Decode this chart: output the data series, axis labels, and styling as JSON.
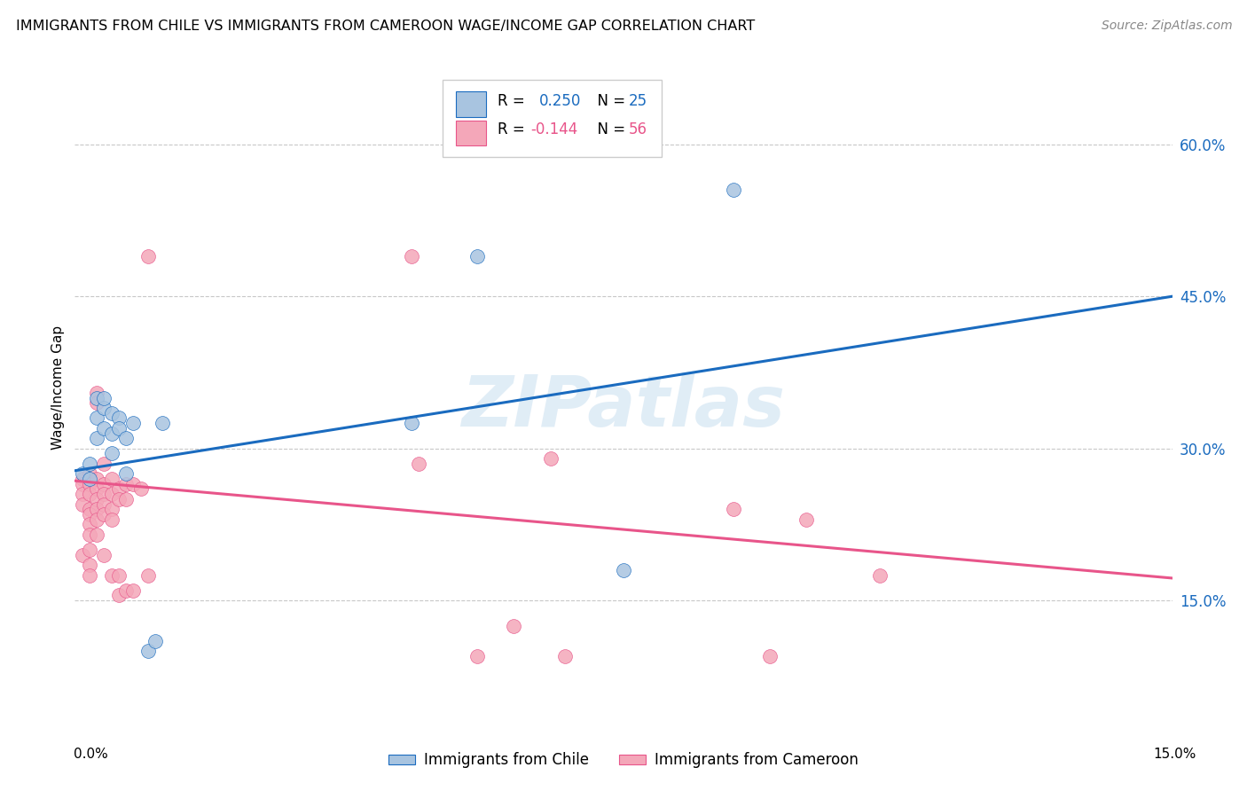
{
  "title": "IMMIGRANTS FROM CHILE VS IMMIGRANTS FROM CAMEROON WAGE/INCOME GAP CORRELATION CHART",
  "source": "Source: ZipAtlas.com",
  "ylabel": "Wage/Income Gap",
  "yaxis_labels": [
    "60.0%",
    "45.0%",
    "30.0%",
    "15.0%"
  ],
  "yaxis_values": [
    0.6,
    0.45,
    0.3,
    0.15
  ],
  "xlim": [
    0.0,
    0.15
  ],
  "ylim": [
    0.04,
    0.68
  ],
  "watermark": "ZIPatlas",
  "legend_chile_color": "#a8c4e0",
  "legend_cameroon_color": "#f4a7b9",
  "chile_line_color": "#1a6bbf",
  "cameroon_line_color": "#e8558a",
  "bottom_legend_chile": "Immigrants from Chile",
  "bottom_legend_cameroon": "Immigrants from Cameroon",
  "chile_scatter": [
    [
      0.001,
      0.275
    ],
    [
      0.002,
      0.27
    ],
    [
      0.002,
      0.285
    ],
    [
      0.003,
      0.31
    ],
    [
      0.003,
      0.33
    ],
    [
      0.003,
      0.35
    ],
    [
      0.004,
      0.34
    ],
    [
      0.004,
      0.35
    ],
    [
      0.004,
      0.32
    ],
    [
      0.005,
      0.315
    ],
    [
      0.005,
      0.335
    ],
    [
      0.005,
      0.295
    ],
    [
      0.006,
      0.33
    ],
    [
      0.006,
      0.32
    ],
    [
      0.007,
      0.31
    ],
    [
      0.007,
      0.275
    ],
    [
      0.008,
      0.325
    ],
    [
      0.01,
      0.1
    ],
    [
      0.011,
      0.11
    ],
    [
      0.012,
      0.325
    ],
    [
      0.046,
      0.325
    ],
    [
      0.055,
      0.49
    ],
    [
      0.075,
      0.18
    ],
    [
      0.09,
      0.555
    ]
  ],
  "cameroon_scatter": [
    [
      0.001,
      0.27
    ],
    [
      0.001,
      0.265
    ],
    [
      0.001,
      0.255
    ],
    [
      0.001,
      0.245
    ],
    [
      0.001,
      0.195
    ],
    [
      0.002,
      0.275
    ],
    [
      0.002,
      0.265
    ],
    [
      0.002,
      0.255
    ],
    [
      0.002,
      0.24
    ],
    [
      0.002,
      0.235
    ],
    [
      0.002,
      0.225
    ],
    [
      0.002,
      0.215
    ],
    [
      0.002,
      0.2
    ],
    [
      0.002,
      0.185
    ],
    [
      0.002,
      0.175
    ],
    [
      0.003,
      0.355
    ],
    [
      0.003,
      0.345
    ],
    [
      0.003,
      0.27
    ],
    [
      0.003,
      0.26
    ],
    [
      0.003,
      0.25
    ],
    [
      0.003,
      0.24
    ],
    [
      0.003,
      0.23
    ],
    [
      0.003,
      0.215
    ],
    [
      0.004,
      0.285
    ],
    [
      0.004,
      0.265
    ],
    [
      0.004,
      0.255
    ],
    [
      0.004,
      0.245
    ],
    [
      0.004,
      0.235
    ],
    [
      0.004,
      0.195
    ],
    [
      0.005,
      0.27
    ],
    [
      0.005,
      0.255
    ],
    [
      0.005,
      0.24
    ],
    [
      0.005,
      0.23
    ],
    [
      0.005,
      0.175
    ],
    [
      0.006,
      0.26
    ],
    [
      0.006,
      0.25
    ],
    [
      0.006,
      0.175
    ],
    [
      0.006,
      0.155
    ],
    [
      0.007,
      0.265
    ],
    [
      0.007,
      0.25
    ],
    [
      0.007,
      0.16
    ],
    [
      0.008,
      0.265
    ],
    [
      0.008,
      0.16
    ],
    [
      0.009,
      0.26
    ],
    [
      0.01,
      0.49
    ],
    [
      0.01,
      0.175
    ],
    [
      0.046,
      0.49
    ],
    [
      0.047,
      0.285
    ],
    [
      0.055,
      0.095
    ],
    [
      0.06,
      0.125
    ],
    [
      0.065,
      0.29
    ],
    [
      0.067,
      0.095
    ],
    [
      0.09,
      0.24
    ],
    [
      0.095,
      0.095
    ],
    [
      0.1,
      0.23
    ],
    [
      0.11,
      0.175
    ]
  ],
  "chile_trendline": [
    [
      0.0,
      0.278
    ],
    [
      0.15,
      0.45
    ]
  ],
  "cameroon_trendline": [
    [
      0.0,
      0.268
    ],
    [
      0.15,
      0.172
    ]
  ]
}
